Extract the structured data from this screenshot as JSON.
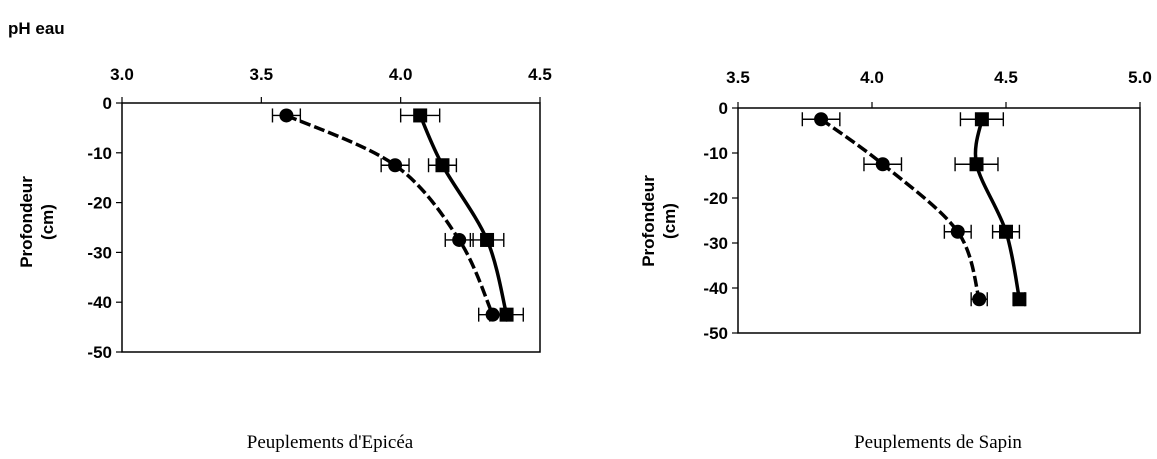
{
  "figure_label": "pH eau",
  "chart_data": [
    {
      "type": "line",
      "caption": "Peuplements d'Epicéa",
      "ylabel": "Profondeur (cm)",
      "xlim": [
        3.0,
        4.5
      ],
      "ylim": [
        -50,
        0
      ],
      "x_ticks": [
        "3.0",
        "3.5",
        "4.0",
        "4.5"
      ],
      "y_ticks": [
        "0",
        "-10",
        "-20",
        "-30",
        "-40",
        "-50"
      ],
      "grid": false,
      "series": [
        {
          "marker": "circle",
          "line_style": "dashed",
          "points": [
            {
              "x": 3.59,
              "y": -2.5,
              "err": 0.05
            },
            {
              "x": 3.98,
              "y": -12.5,
              "err": 0.05
            },
            {
              "x": 4.21,
              "y": -27.5,
              "err": 0.05
            },
            {
              "x": 4.33,
              "y": -42.5,
              "err": 0.05
            }
          ]
        },
        {
          "marker": "square",
          "line_style": "solid",
          "points": [
            {
              "x": 4.07,
              "y": -2.5,
              "err": 0.07
            },
            {
              "x": 4.15,
              "y": -12.5,
              "err": 0.05
            },
            {
              "x": 4.31,
              "y": -27.5,
              "err": 0.06
            },
            {
              "x": 4.38,
              "y": -42.5,
              "err": 0.06
            }
          ]
        }
      ]
    },
    {
      "type": "line",
      "caption": "Peuplements de Sapin",
      "ylabel": "Profondeur (cm)",
      "xlim": [
        3.5,
        5.0
      ],
      "ylim": [
        -50,
        0
      ],
      "x_ticks": [
        "3.5",
        "4.0",
        "4.5",
        "5.0"
      ],
      "y_ticks": [
        "0",
        "-10",
        "-20",
        "-30",
        "-40",
        "-50"
      ],
      "grid": false,
      "series": [
        {
          "marker": "circle",
          "line_style": "dashed",
          "points": [
            {
              "x": 3.81,
              "y": -2.5,
              "err": 0.07
            },
            {
              "x": 4.04,
              "y": -12.5,
              "err": 0.07
            },
            {
              "x": 4.32,
              "y": -27.5,
              "err": 0.05
            },
            {
              "x": 4.4,
              "y": -42.5,
              "err": 0.03
            }
          ]
        },
        {
          "marker": "square",
          "line_style": "solid",
          "points": [
            {
              "x": 4.41,
              "y": -2.5,
              "err": 0.08
            },
            {
              "x": 4.39,
              "y": -12.5,
              "err": 0.08
            },
            {
              "x": 4.5,
              "y": -27.5,
              "err": 0.05
            },
            {
              "x": 4.55,
              "y": -42.5,
              "err": 0.02
            }
          ]
        }
      ]
    }
  ]
}
